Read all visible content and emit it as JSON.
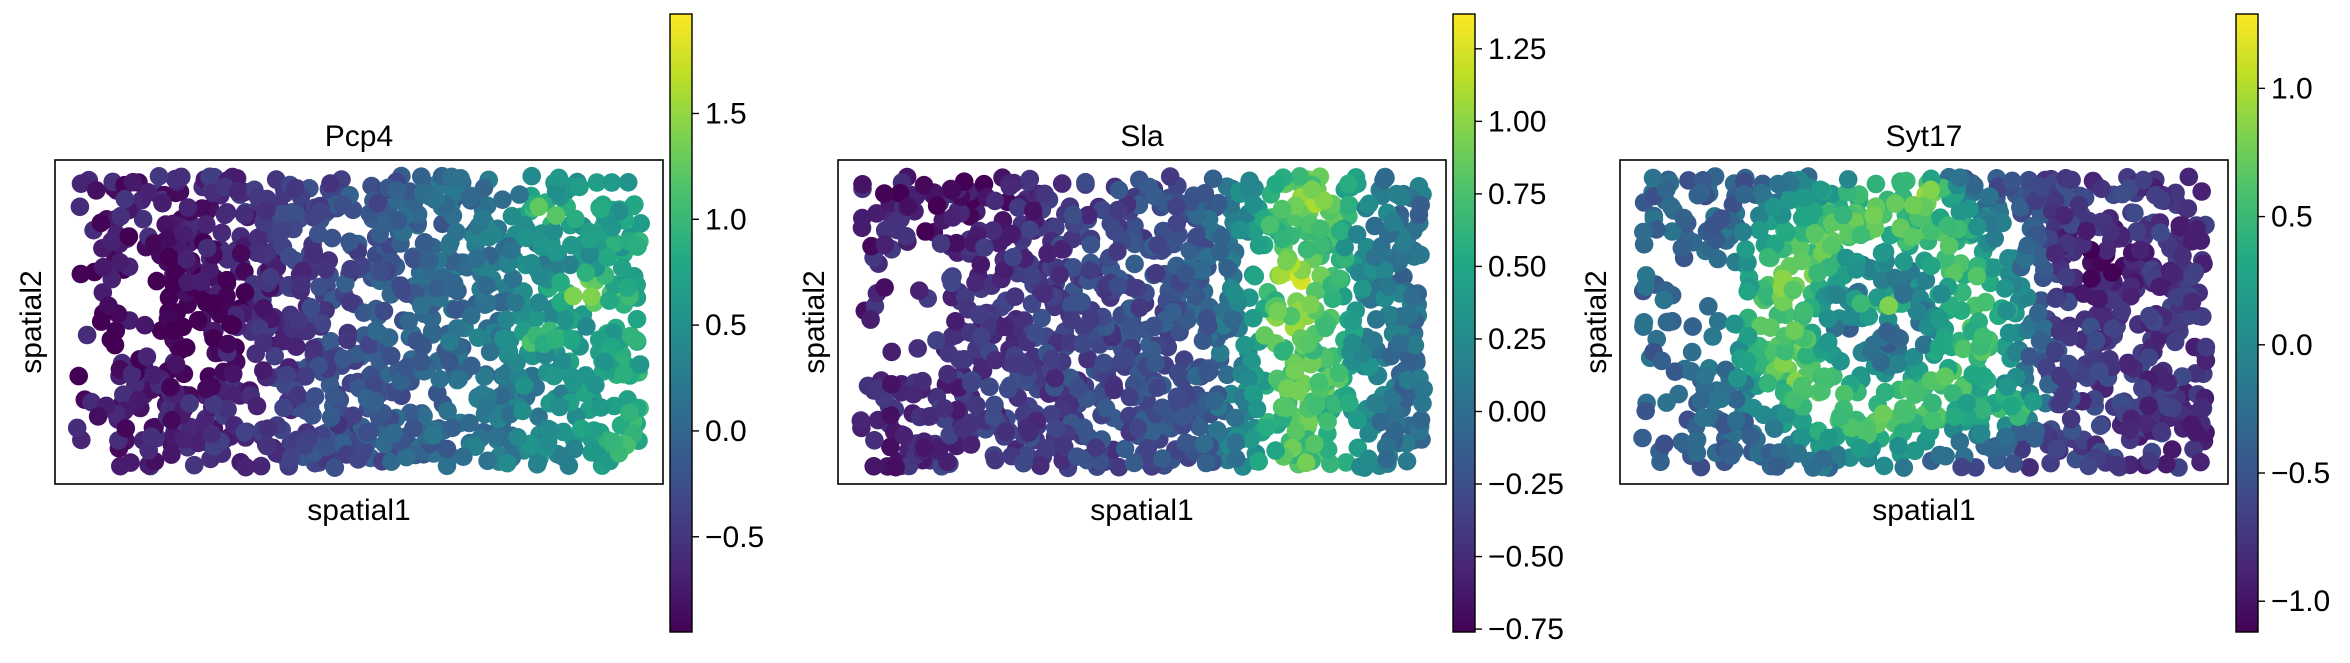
{
  "chart_data": [
    {
      "type": "scatter",
      "title": "Pcp4",
      "xlabel": "spatial1",
      "ylabel": "spatial2",
      "colormap": "viridis",
      "color_range": [
        -0.95,
        1.97
      ],
      "colorbar_ticks": [
        -0.5,
        0.0,
        0.5,
        1.0,
        1.5
      ],
      "colorbar_tick_labels": [
        "−0.5",
        "0.0",
        "0.5",
        "1.0",
        "1.5"
      ],
      "spatial_pattern": "low expression on the left, high expression on the right with a hotspot at the right-center",
      "n_points_approx": 1200,
      "hotspots": [
        {
          "x": 0.9,
          "y": 0.61,
          "value": 1.9
        },
        {
          "x": 0.84,
          "y": 0.88,
          "value": 1.5
        },
        {
          "x": 0.82,
          "y": 0.45,
          "value": 1.4
        },
        {
          "x": 0.96,
          "y": 0.1,
          "value": 1.2
        }
      ]
    },
    {
      "type": "scatter",
      "title": "Sla",
      "xlabel": "spatial1",
      "ylabel": "spatial2",
      "colormap": "viridis",
      "color_range": [
        -0.76,
        1.37
      ],
      "colorbar_ticks": [
        -0.75,
        -0.5,
        -0.25,
        0.0,
        0.25,
        0.5,
        0.75,
        1.0,
        1.25
      ],
      "colorbar_tick_labels": [
        "−0.75",
        "−0.50",
        "−0.25",
        "0.00",
        "0.25",
        "0.50",
        "0.75",
        "1.00",
        "1.25"
      ],
      "spatial_pattern": "low expression on the left, a high-expression vertical band at the center-right",
      "n_points_approx": 1200,
      "hotspots": [
        {
          "x": 0.78,
          "y": 0.66,
          "value": 1.3
        },
        {
          "x": 0.76,
          "y": 0.48,
          "value": 1.2
        },
        {
          "x": 0.8,
          "y": 0.88,
          "value": 1.1
        },
        {
          "x": 0.82,
          "y": 0.28,
          "value": 0.9
        }
      ]
    },
    {
      "type": "scatter",
      "title": "Syt17",
      "xlabel": "spatial1",
      "ylabel": "spatial2",
      "colormap": "viridis",
      "color_range": [
        -1.12,
        1.29
      ],
      "colorbar_ticks": [
        -1.0,
        -0.5,
        0.0,
        0.5,
        1.0
      ],
      "colorbar_tick_labels": [
        "−1.0",
        "−0.5",
        "0.0",
        "0.5",
        "1.0"
      ],
      "spatial_pattern": "high expression ring on the left-center, low expression on the right",
      "n_points_approx": 1200,
      "hotspots": [
        {
          "x": 0.42,
          "y": 0.55,
          "value": 1.25
        },
        {
          "x": 0.5,
          "y": 0.95,
          "value": 1.1
        },
        {
          "x": 0.28,
          "y": 0.65,
          "value": 0.9
        },
        {
          "x": 0.66,
          "y": 0.2,
          "value": 0.7
        }
      ]
    }
  ]
}
